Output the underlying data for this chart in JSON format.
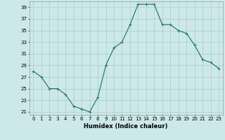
{
  "x": [
    0,
    1,
    2,
    3,
    4,
    5,
    6,
    7,
    8,
    9,
    10,
    11,
    12,
    13,
    14,
    15,
    16,
    17,
    18,
    19,
    20,
    21,
    22,
    23
  ],
  "y": [
    28,
    27,
    25,
    25,
    24,
    22,
    21.5,
    21,
    23.5,
    29,
    32,
    33,
    36,
    39.5,
    39.5,
    39.5,
    36,
    36,
    35,
    34.5,
    32.5,
    30,
    29.5,
    28.5
  ],
  "line_color": "#2d7d6e",
  "marker": "+",
  "marker_size": 3,
  "marker_lw": 0.8,
  "line_width": 0.9,
  "bg_color": "#cce8e8",
  "grid_color": "#aacece",
  "xlabel": "Humidex (Indice chaleur)",
  "ylim": [
    20.5,
    40
  ],
  "xlim": [
    -0.5,
    23.5
  ],
  "yticks": [
    21,
    23,
    25,
    27,
    29,
    31,
    33,
    35,
    37,
    39
  ],
  "xticks": [
    0,
    1,
    2,
    3,
    4,
    5,
    6,
    7,
    8,
    9,
    10,
    11,
    12,
    13,
    14,
    15,
    16,
    17,
    18,
    19,
    20,
    21,
    22,
    23
  ],
  "tick_fontsize": 5.0,
  "xlabel_fontsize": 6.0
}
